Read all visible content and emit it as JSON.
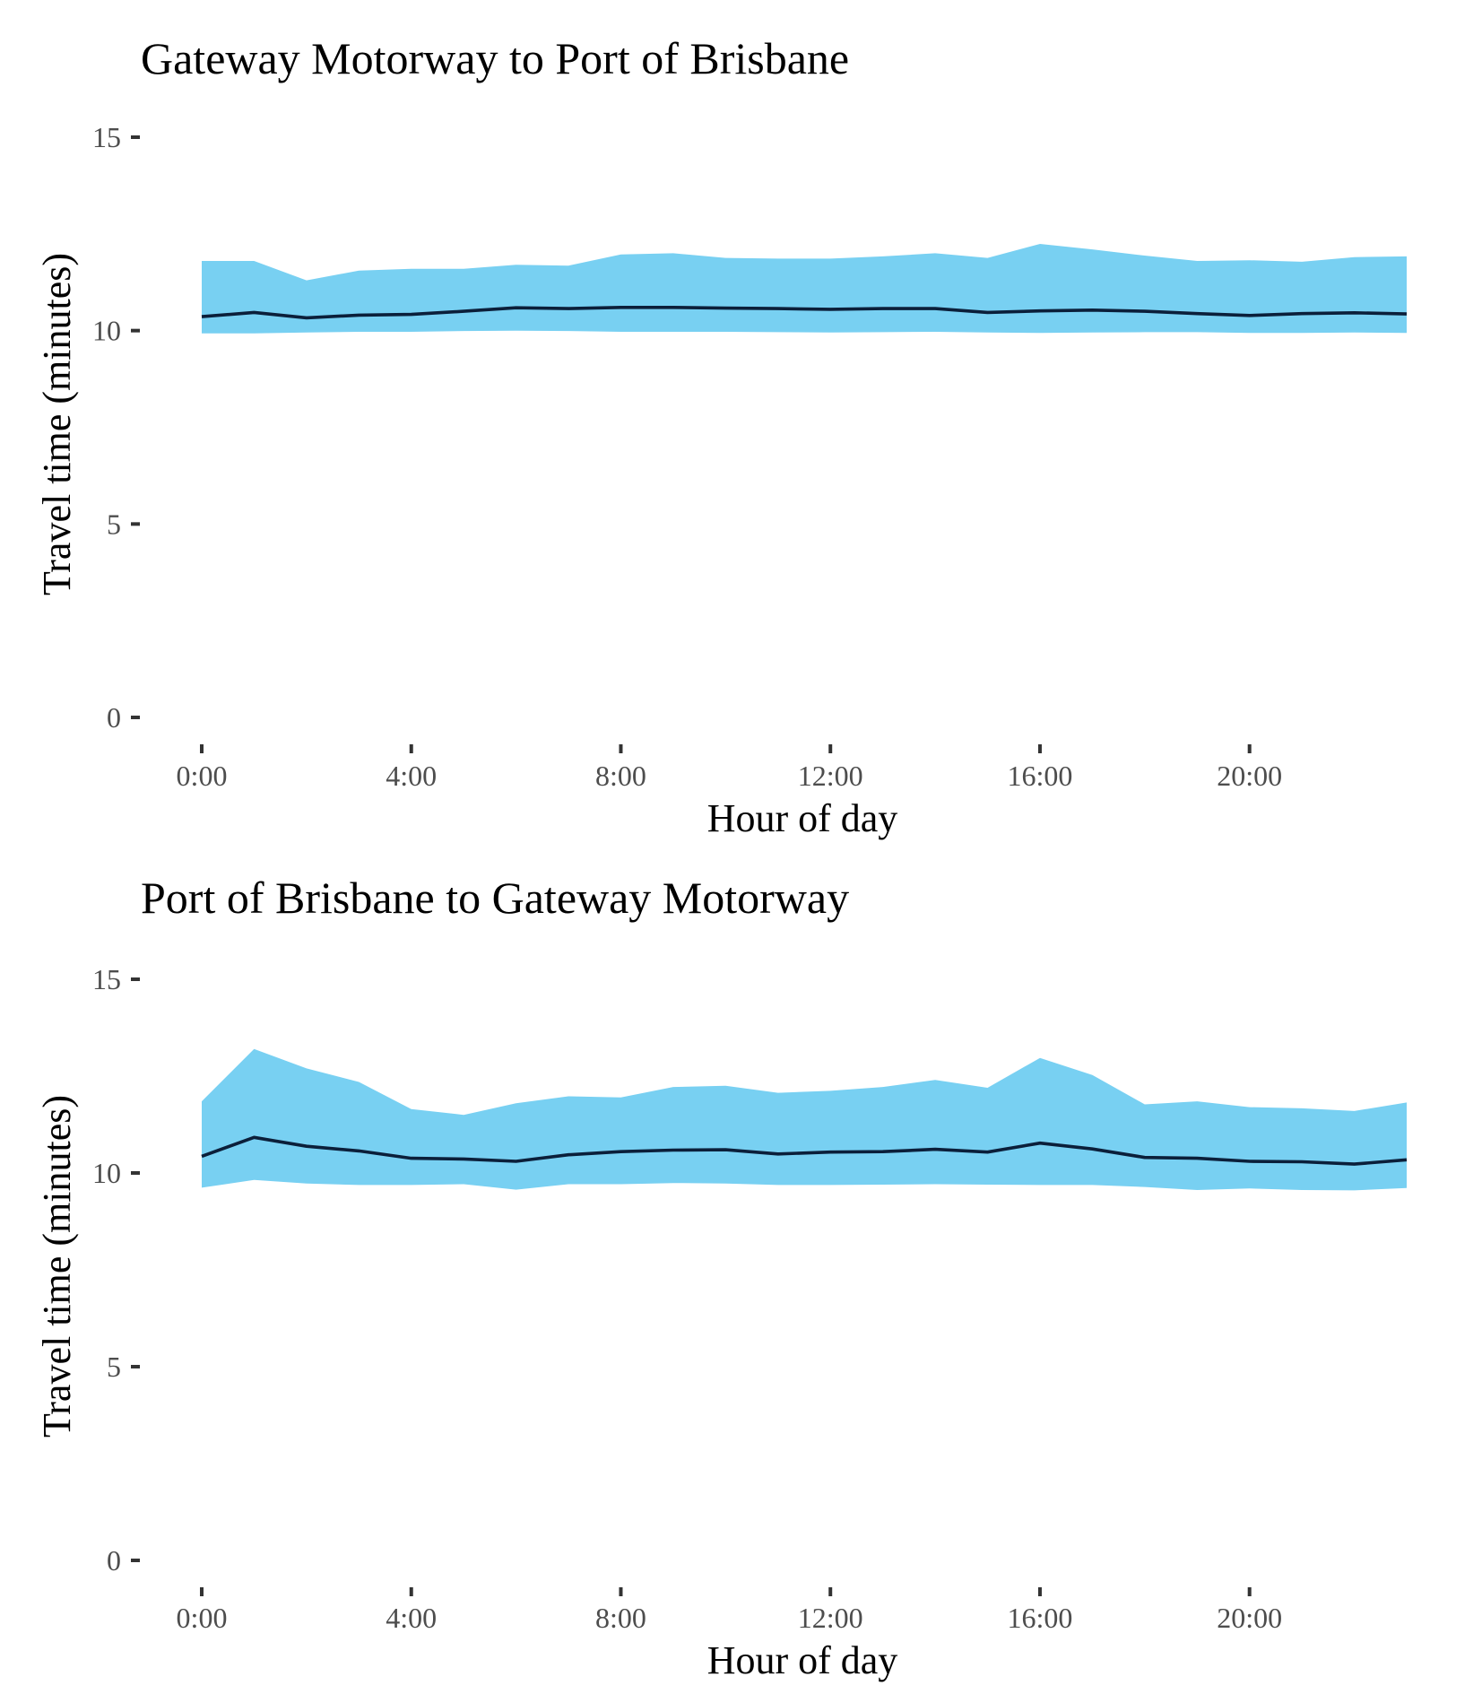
{
  "chart_data": [
    {
      "type": "area",
      "title": "Gateway Motorway to Port of Brisbane",
      "xlabel": "Hour of day",
      "ylabel": "Travel time (minutes)",
      "xlim": [
        0,
        23
      ],
      "ylim": [
        0,
        15
      ],
      "x_ticks": [
        {
          "value": 0,
          "label": "0:00"
        },
        {
          "value": 4,
          "label": "4:00"
        },
        {
          "value": 8,
          "label": "8:00"
        },
        {
          "value": 12,
          "label": "12:00"
        },
        {
          "value": 16,
          "label": "16:00"
        },
        {
          "value": 20,
          "label": "20:00"
        }
      ],
      "y_ticks": [
        {
          "value": 0,
          "label": "0"
        },
        {
          "value": 5,
          "label": "5"
        },
        {
          "value": 10,
          "label": "10"
        },
        {
          "value": 15,
          "label": "15"
        }
      ],
      "grid": false,
      "band_color": "#78d0f2",
      "line_color": "#0b1f3a",
      "x": [
        0,
        1,
        2,
        3,
        4,
        5,
        6,
        7,
        8,
        9,
        10,
        11,
        12,
        13,
        14,
        15,
        16,
        17,
        18,
        19,
        20,
        21,
        22,
        23
      ],
      "upper": [
        11.8,
        11.8,
        11.3,
        11.55,
        11.6,
        11.6,
        11.7,
        11.68,
        11.97,
        12.0,
        11.88,
        11.86,
        11.86,
        11.92,
        12.0,
        11.88,
        12.24,
        12.1,
        11.94,
        11.8,
        11.82,
        11.78,
        11.9,
        11.92
      ],
      "median": [
        10.36,
        10.47,
        10.33,
        10.4,
        10.42,
        10.5,
        10.59,
        10.57,
        10.6,
        10.6,
        10.58,
        10.57,
        10.55,
        10.57,
        10.57,
        10.47,
        10.51,
        10.53,
        10.5,
        10.44,
        10.39,
        10.44,
        10.46,
        10.43
      ],
      "lower": [
        9.93,
        9.93,
        9.95,
        9.97,
        9.97,
        9.99,
        10.0,
        9.99,
        9.97,
        9.97,
        9.97,
        9.96,
        9.95,
        9.96,
        9.97,
        9.95,
        9.94,
        9.95,
        9.96,
        9.96,
        9.94,
        9.94,
        9.95,
        9.94
      ]
    },
    {
      "type": "area",
      "title": "Port of Brisbane to Gateway Motorway",
      "xlabel": "Hour of day",
      "ylabel": "Travel time (minutes)",
      "xlim": [
        0,
        23
      ],
      "ylim": [
        0,
        15
      ],
      "x_ticks": [
        {
          "value": 0,
          "label": "0:00"
        },
        {
          "value": 4,
          "label": "4:00"
        },
        {
          "value": 8,
          "label": "8:00"
        },
        {
          "value": 12,
          "label": "12:00"
        },
        {
          "value": 16,
          "label": "16:00"
        },
        {
          "value": 20,
          "label": "20:00"
        }
      ],
      "y_ticks": [
        {
          "value": 0,
          "label": "0"
        },
        {
          "value": 5,
          "label": "5"
        },
        {
          "value": 10,
          "label": "10"
        },
        {
          "value": 15,
          "label": "15"
        }
      ],
      "grid": false,
      "band_color": "#78d0f2",
      "line_color": "#0b1f3a",
      "x": [
        0,
        1,
        2,
        3,
        4,
        5,
        6,
        7,
        8,
        9,
        10,
        11,
        12,
        13,
        14,
        15,
        16,
        17,
        18,
        19,
        20,
        21,
        22,
        23
      ],
      "upper": [
        11.85,
        13.2,
        12.7,
        12.35,
        11.65,
        11.5,
        11.8,
        11.98,
        11.95,
        12.22,
        12.25,
        12.07,
        12.12,
        12.22,
        12.4,
        12.2,
        12.97,
        12.53,
        11.77,
        11.85,
        11.7,
        11.67,
        11.6,
        11.82
      ],
      "median": [
        10.43,
        10.92,
        10.69,
        10.57,
        10.38,
        10.36,
        10.3,
        10.47,
        10.55,
        10.59,
        10.6,
        10.49,
        10.54,
        10.55,
        10.61,
        10.54,
        10.77,
        10.62,
        10.4,
        10.38,
        10.3,
        10.29,
        10.23,
        10.34
      ],
      "lower": [
        9.62,
        9.82,
        9.73,
        9.69,
        9.69,
        9.71,
        9.57,
        9.71,
        9.71,
        9.74,
        9.73,
        9.69,
        9.69,
        9.7,
        9.71,
        9.7,
        9.69,
        9.69,
        9.64,
        9.56,
        9.6,
        9.56,
        9.55,
        9.61
      ]
    }
  ]
}
